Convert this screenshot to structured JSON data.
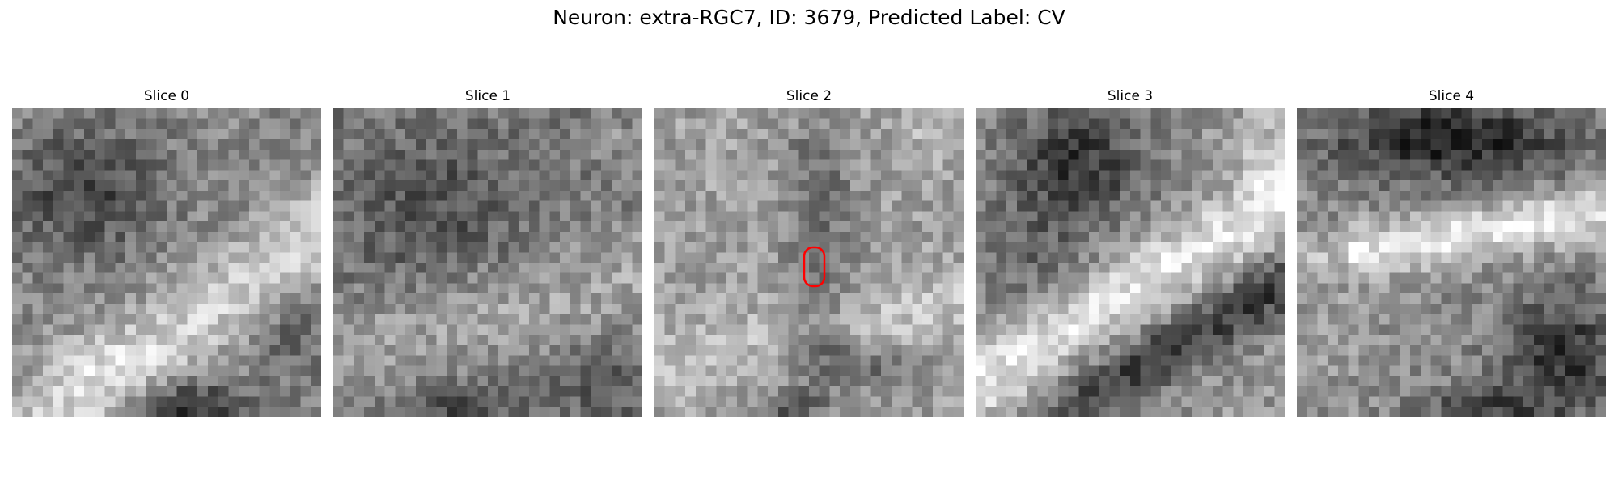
{
  "figure": {
    "title": "Neuron: extra-RGC7, ID: 3679, Predicted Label: CV"
  },
  "panels": [
    {
      "title": "Slice 0",
      "dominant_tone": "mid-gray with bright diagonal band lower right and dark blob bottom"
    },
    {
      "title": "Slice 1",
      "dominant_tone": "darker gray texture with lighter lower region"
    },
    {
      "title": "Slice 2",
      "dominant_tone": "light gray texture with dark vertical band center",
      "marker": {
        "shape": "rounded-rectangle",
        "color": "#ff0000"
      }
    },
    {
      "title": "Slice 3",
      "dominant_tone": "dark top-left region with bright diagonal band and dark band lower right"
    },
    {
      "title": "Slice 4",
      "dominant_tone": "dark top region, bright diagonal band, dark lower right"
    }
  ],
  "colors": {
    "background": "#ffffff",
    "marker": "#ff0000"
  }
}
